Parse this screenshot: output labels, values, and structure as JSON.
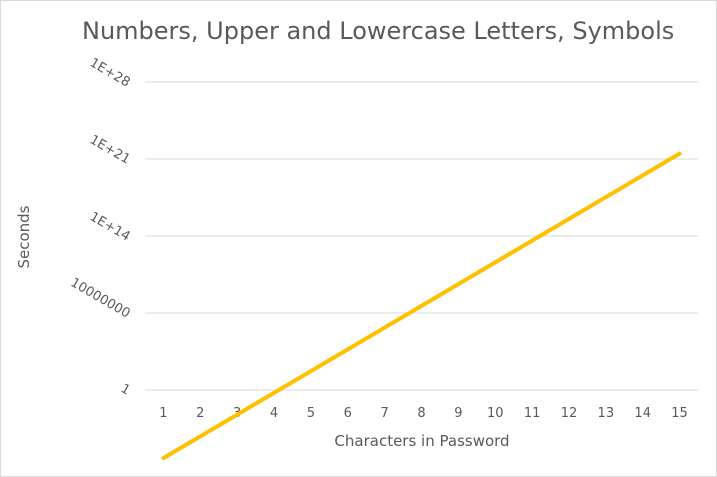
{
  "chart_data": {
    "type": "line",
    "title": "Numbers, Upper and Lowercase Letters, Symbols",
    "xlabel": "Characters in Password",
    "ylabel": "Seconds",
    "x": [
      1,
      2,
      3,
      4,
      5,
      6,
      7,
      8,
      9,
      10,
      11,
      12,
      13,
      14,
      15
    ],
    "series": [
      {
        "values": [
          6.5e-07,
          6.1e-05,
          0.0058,
          0.55,
          52,
          4900,
          470000,
          44000000,
          4200000000,
          400000000000.0,
          38000000000000.0,
          3600000000000000.0,
          3.4e+17,
          3.2e+19,
          3.1e+21
        ]
      }
    ],
    "y_scale": "log",
    "y_ticks": [
      "1",
      "10000000",
      "1E+14",
      "1E+21",
      "1E+28"
    ],
    "x_ticks": [
      "1",
      "2",
      "3",
      "4",
      "5",
      "6",
      "7",
      "8",
      "9",
      "10",
      "11",
      "12",
      "13",
      "14",
      "15"
    ],
    "grid": "horizontal",
    "legend": "none",
    "colors": {
      "line": "#FFC000",
      "grid": "#d9d9d9",
      "text": "#595959"
    }
  }
}
